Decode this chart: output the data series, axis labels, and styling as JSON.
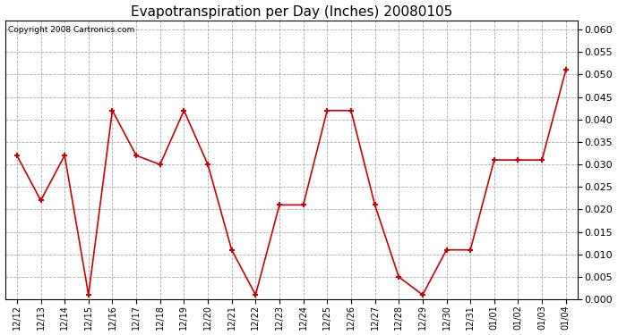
{
  "title": "Evapotranspiration per Day (Inches) 20080105",
  "copyright": "Copyright 2008 Cartronics.com",
  "x_labels": [
    "12/12",
    "12/13",
    "12/14",
    "12/15",
    "12/16",
    "12/17",
    "12/18",
    "12/19",
    "12/20",
    "12/21",
    "12/22",
    "12/23",
    "12/24",
    "12/25",
    "12/26",
    "12/27",
    "12/28",
    "12/29",
    "12/30",
    "12/31",
    "01/01",
    "01/02",
    "01/03",
    "01/04"
  ],
  "y_values": [
    0.032,
    0.022,
    0.032,
    0.001,
    0.042,
    0.032,
    0.03,
    0.042,
    0.03,
    0.011,
    0.001,
    0.021,
    0.021,
    0.042,
    0.042,
    0.021,
    0.005,
    0.001,
    0.011,
    0.011,
    0.031,
    0.031,
    0.031,
    0.051
  ],
  "line_color": "#cc0000",
  "marker": "+",
  "marker_size": 5,
  "marker_linewidth": 1.5,
  "line_width": 1.2,
  "ylim": [
    0.0,
    0.062
  ],
  "yticks": [
    0.0,
    0.005,
    0.01,
    0.015,
    0.02,
    0.025,
    0.03,
    0.035,
    0.04,
    0.045,
    0.05,
    0.055,
    0.06
  ],
  "grid_color": "#aaaaaa",
  "grid_linestyle": "--",
  "bg_color": "#ffffff",
  "title_fontsize": 11,
  "copyright_fontsize": 6.5,
  "tick_fontsize": 7,
  "y_tick_fontsize": 8
}
